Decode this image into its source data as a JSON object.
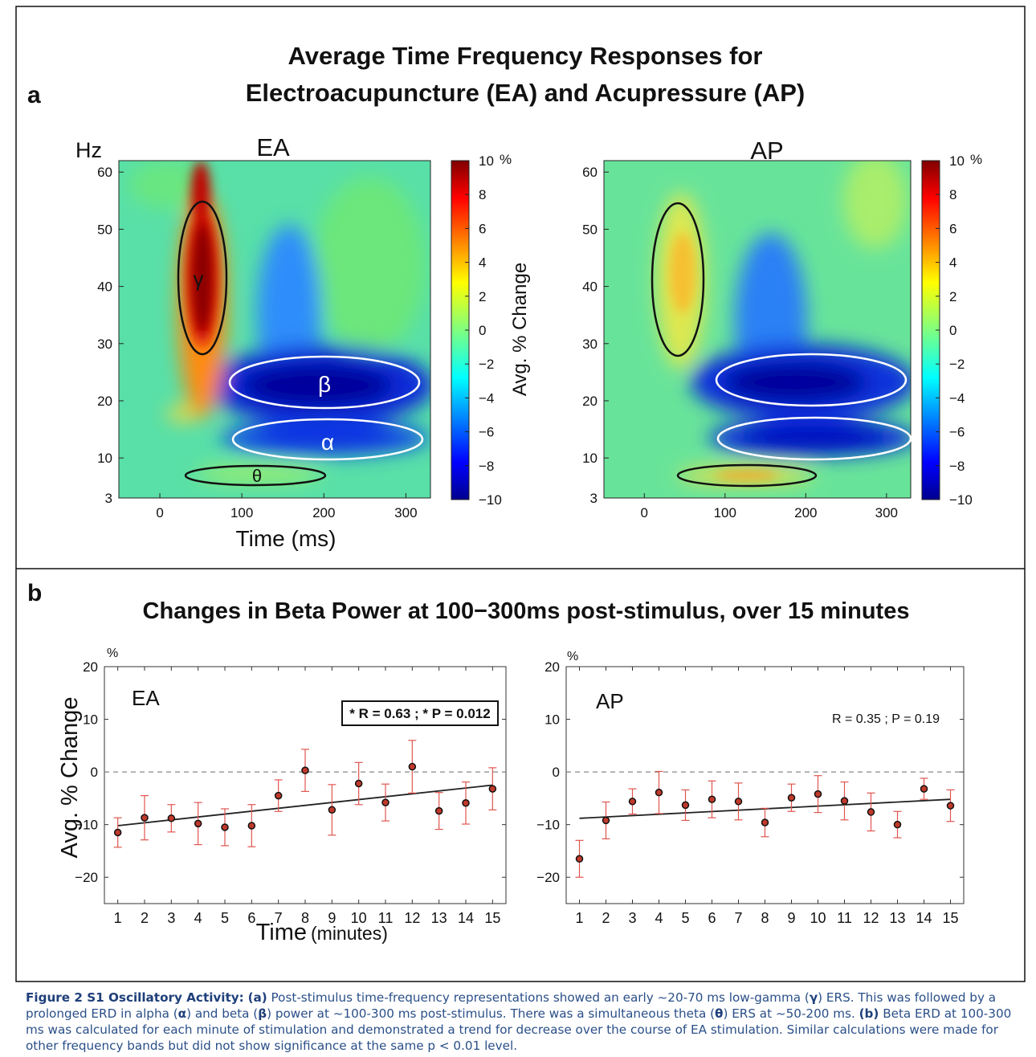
{
  "figure": {
    "panel_a_letter": "a",
    "panel_b_letter": "b",
    "title_line1": "Average Time Frequency Responses for",
    "title_line2": "Electroacupuncture (EA) and Acupressure (AP)",
    "b_title": "Changes in Beta Power at 100−300ms post-stimulus, over 15 minutes"
  },
  "colors": {
    "ea_error_bar": "#e0554f",
    "marker_fill": "#c0392b",
    "border": "#111111"
  },
  "caption": {
    "label": "Figure 2 S1 Oscillatory Activity:",
    "a_tag": "(a)",
    "a_text_1": "Post-stimulus time-frequency representations showed an early ~20-70 ms low-gamma (",
    "gamma": "γ",
    "a_text_2": ") ERS. This was followed by a prolonged ERD in alpha (",
    "alpha": "α",
    "a_text_3": ") and beta (",
    "beta": "β",
    "a_text_4": ") power at ~100-300 ms post-stimulus. There was a simultaneous theta (",
    "theta": "θ",
    "a_text_5": ") ERS at ~50-200 ms.",
    "b_tag": "(b)",
    "b_text": "Beta ERD at 100-300 ms was calculated for each minute of stimulation and demonstrated a trend for decrease over the course of EA stimulation. Similar calculations were made for other frequency bands but did not show significance at the same p < 0.01 level."
  },
  "chart_data": [
    {
      "type": "heatmap",
      "title": "EA",
      "ylabel": "Hz",
      "xlabel": "Time (ms)",
      "x_ticks": [
        "0",
        "100",
        "200",
        "300"
      ],
      "y_ticks": [
        "3",
        "10",
        "20",
        "30",
        "40",
        "50",
        "60"
      ],
      "xlim": [
        -50,
        330
      ],
      "ylim": [
        3,
        62
      ],
      "colorbar": {
        "label": "Avg. % Change",
        "unit": "%",
        "ticks": [
          "10",
          "8",
          "6",
          "4",
          "2",
          "0",
          "−2",
          "−4",
          "−6",
          "−8",
          "−10"
        ],
        "range": [
          -10,
          10
        ]
      },
      "regions": [
        {
          "band": "γ",
          "time_range_ms": [
            30,
            80
          ],
          "freq_range_hz": [
            28,
            54
          ],
          "value_pct": 10
        },
        {
          "band": "β",
          "time_range_ms": [
            120,
            320
          ],
          "freq_range_hz": [
            18,
            28
          ],
          "value_pct": -9
        },
        {
          "band": "α",
          "time_range_ms": [
            120,
            320
          ],
          "freq_range_hz": [
            9,
            16
          ],
          "value_pct": -7
        },
        {
          "band": "θ",
          "time_range_ms": [
            30,
            200
          ],
          "freq_range_hz": [
            5,
            8
          ],
          "value_pct": 1
        }
      ]
    },
    {
      "type": "heatmap",
      "title": "AP",
      "xlabel": "",
      "x_ticks": [
        "0",
        "100",
        "200",
        "300"
      ],
      "y_ticks": [
        "3",
        "10",
        "20",
        "30",
        "40",
        "50",
        "60"
      ],
      "xlim": [
        -50,
        330
      ],
      "ylim": [
        3,
        62
      ],
      "colorbar": {
        "unit": "%",
        "ticks": [
          "10",
          "8",
          "6",
          "4",
          "2",
          "0",
          "−2",
          "−4",
          "−6",
          "−8",
          "−10"
        ],
        "range": [
          -10,
          10
        ]
      },
      "regions": [
        {
          "band": "",
          "time_range_ms": [
            25,
            75
          ],
          "freq_range_hz": [
            28,
            55
          ],
          "value_pct": 3
        },
        {
          "band": "",
          "time_range_ms": [
            110,
            320
          ],
          "freq_range_hz": [
            18,
            28
          ],
          "value_pct": -8.5
        },
        {
          "band": "",
          "time_range_ms": [
            110,
            320
          ],
          "freq_range_hz": [
            9,
            16
          ],
          "value_pct": -8
        },
        {
          "band": "",
          "time_range_ms": [
            60,
            200
          ],
          "freq_range_hz": [
            5,
            8
          ],
          "value_pct": 4
        }
      ]
    },
    {
      "type": "scatter",
      "title": "EA",
      "xlabel": "Time",
      "xlabel_unit": "(minutes)",
      "ylabel": "Avg. % Change",
      "yunit": "%",
      "annotation": "* R = 0.63 ; * P = 0.012",
      "x": [
        1,
        2,
        3,
        4,
        5,
        6,
        7,
        8,
        9,
        10,
        11,
        12,
        13,
        14,
        15
      ],
      "y": [
        -11.5,
        -8.7,
        -8.8,
        -9.8,
        -10.5,
        -10.2,
        -4.5,
        0.3,
        -7.2,
        -2.2,
        -5.8,
        1.0,
        -7.4,
        -5.9,
        -3.2
      ],
      "err": [
        2.8,
        4.2,
        2.6,
        4.0,
        3.5,
        4.0,
        3.0,
        4.0,
        4.8,
        4.0,
        3.5,
        5.0,
        3.5,
        4.0,
        4.0
      ],
      "trend": [
        -10.2,
        -2.5
      ],
      "ylim": [
        -25,
        20
      ],
      "xlim": [
        0.5,
        15.5
      ],
      "x_ticks": [
        "1",
        "2",
        "3",
        "4",
        "5",
        "6",
        "7",
        "8",
        "9",
        "10",
        "11",
        "12",
        "13",
        "14",
        "15"
      ],
      "y_ticks": [
        "20",
        "10",
        "0",
        "−10",
        "−20"
      ]
    },
    {
      "type": "scatter",
      "title": "AP",
      "yunit": "%",
      "annotation": "R = 0.35 ; P = 0.19",
      "x": [
        1,
        2,
        3,
        4,
        5,
        6,
        7,
        8,
        9,
        10,
        11,
        12,
        13,
        14,
        15
      ],
      "y": [
        -16.5,
        -9.2,
        -5.6,
        -3.9,
        -6.3,
        -5.2,
        -5.6,
        -9.6,
        -4.9,
        -4.2,
        -5.5,
        -7.6,
        -10.0,
        -3.2,
        -6.4
      ],
      "err": [
        3.5,
        3.5,
        2.4,
        4.0,
        2.9,
        3.5,
        3.5,
        2.7,
        2.6,
        3.5,
        3.6,
        3.6,
        2.5,
        2.0,
        3.0
      ],
      "trend": [
        -8.8,
        -5.2
      ],
      "ylim": [
        -25,
        20
      ],
      "xlim": [
        0.5,
        15.5
      ],
      "x_ticks": [
        "1",
        "2",
        "3",
        "4",
        "5",
        "6",
        "7",
        "8",
        "9",
        "10",
        "11",
        "12",
        "13",
        "14",
        "15"
      ],
      "y_ticks": [
        "20",
        "10",
        "0",
        "−10",
        "−20"
      ]
    }
  ]
}
